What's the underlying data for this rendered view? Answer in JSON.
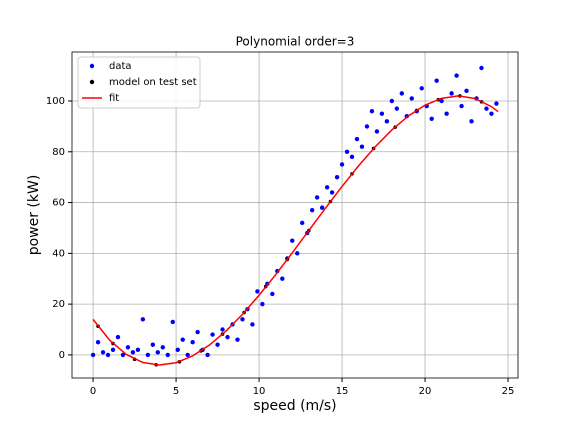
{
  "chart_data": {
    "type": "scatter",
    "title": "Polynomial order=3",
    "x_label": "speed (m/s)",
    "y_label": "power (kW)",
    "xlim": [
      -1.27,
      25.6
    ],
    "ylim": [
      -9.1,
      119.3
    ],
    "xticks": [
      0,
      5,
      10,
      15,
      20,
      25
    ],
    "yticks": [
      0,
      20,
      40,
      60,
      80,
      100
    ],
    "grid": true,
    "legend": "upper left",
    "series": [
      {
        "name": "data",
        "type": "scatter",
        "color": "#0000ff",
        "x": [
          0,
          0.3,
          0.6,
          0.9,
          1.2,
          1.5,
          1.8,
          2.1,
          2.4,
          2.7,
          3.0,
          3.3,
          3.6,
          3.9,
          4.2,
          4.5,
          4.8,
          5.1,
          5.4,
          5.7,
          6.0,
          6.3,
          6.6,
          6.9,
          7.2,
          7.5,
          7.8,
          8.1,
          8.4,
          8.7,
          9.0,
          9.3,
          9.6,
          9.9,
          10.2,
          10.5,
          10.8,
          11.1,
          11.4,
          11.7,
          12.0,
          12.3,
          12.6,
          12.9,
          13.2,
          13.5,
          13.8,
          14.1,
          14.4,
          14.7,
          15.0,
          15.3,
          15.6,
          15.9,
          16.2,
          16.5,
          16.8,
          17.1,
          17.4,
          17.7,
          18.0,
          18.3,
          18.6,
          18.9,
          19.2,
          19.5,
          19.8,
          20.1,
          20.4,
          20.7,
          21.0,
          21.3,
          21.6,
          21.9,
          22.2,
          22.5,
          22.8,
          23.1,
          23.4,
          23.7,
          24.0,
          24.3
        ],
        "values": [
          0,
          5,
          1,
          0,
          2,
          7,
          0,
          3,
          1,
          2,
          14,
          0,
          4,
          1,
          3,
          0,
          13,
          2,
          6,
          0,
          5,
          9,
          2,
          0,
          8,
          4,
          10,
          7,
          12,
          6,
          14,
          18,
          12,
          25,
          20,
          28,
          24,
          33,
          30,
          38,
          45,
          40,
          52,
          48,
          57,
          62,
          58,
          66,
          64,
          70,
          75,
          80,
          78,
          85,
          82,
          90,
          96,
          88,
          95,
          92,
          100,
          97,
          103,
          94,
          101,
          96,
          105,
          98,
          93,
          108,
          100,
          95,
          103,
          110,
          98,
          104,
          92,
          101,
          113,
          97,
          95,
          99
        ]
      },
      {
        "name": "model on test set",
        "type": "scatter",
        "color": "#000000",
        "x": [
          0.3,
          1.2,
          2.5,
          3.8,
          5.2,
          6.5,
          7.8,
          9.1,
          10.4,
          11.7,
          13,
          14.3,
          15.6,
          16.9,
          18.2,
          19.5,
          20.8,
          22.1,
          23.4
        ],
        "values": [
          11.3,
          4.5,
          -1.7,
          -3.9,
          -2.7,
          1.6,
          8.2,
          16.7,
          26.9,
          37.6,
          49.0,
          60.4,
          71.3,
          81.3,
          89.7,
          96.3,
          100.5,
          102.0,
          99.7
        ]
      },
      {
        "name": "fit",
        "type": "line",
        "color": "#ff0000",
        "x": [
          0,
          1,
          2,
          3,
          4,
          5,
          6,
          7,
          8,
          9,
          10,
          11,
          12,
          13,
          14,
          15,
          16,
          17,
          18,
          19,
          20,
          21,
          22,
          23,
          24,
          24.4
        ],
        "values": [
          14.0,
          5.78,
          0.19,
          -3.01,
          -4.0,
          -3.08,
          -0.39,
          3.83,
          9.35,
          15.97,
          23.5,
          31.6,
          40.19,
          49.0,
          57.79,
          66.36,
          74.5,
          82.0,
          88.6,
          94.15,
          98.36,
          101.05,
          102.01,
          101.0,
          97.8,
          95.8
        ]
      }
    ]
  }
}
